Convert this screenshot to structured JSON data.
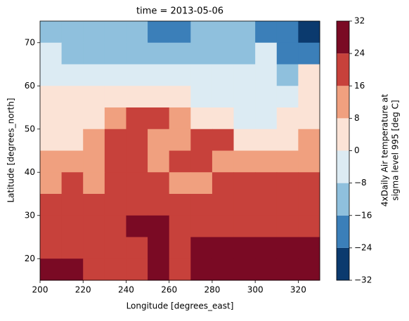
{
  "chart_data": {
    "type": "contourf",
    "title": "time = 2013-05-06",
    "x_label": "Longitude [degrees_east]",
    "y_label": "Latitude [degrees_north]",
    "colorbar_label": [
      "4xDaily Air temperature at",
      "sigma level 995 [deg C]"
    ],
    "x": [
      205,
      215,
      225,
      235,
      245,
      255,
      265,
      275,
      285,
      295,
      305,
      315,
      325
    ],
    "y": [
      72.5,
      67.5,
      62.5,
      57.5,
      52.5,
      47.5,
      42.5,
      37.5,
      32.5,
      27.5,
      22.5,
      17.5
    ],
    "values": [
      [
        -10,
        -10,
        -10,
        -10,
        -10,
        -20,
        -20,
        -10,
        -10,
        -10,
        -20,
        -20,
        -28
      ],
      [
        -4,
        -10,
        -10,
        -10,
        -10,
        -10,
        -10,
        -10,
        -10,
        -10,
        -4,
        -20,
        -20
      ],
      [
        -4,
        -4,
        -4,
        -4,
        -4,
        -4,
        -4,
        -4,
        -4,
        -4,
        -4,
        -10,
        4
      ],
      [
        4,
        4,
        4,
        4,
        4,
        4,
        4,
        -4,
        -4,
        -4,
        -4,
        -4,
        4
      ],
      [
        4,
        4,
        4,
        12,
        20,
        20,
        12,
        4,
        4,
        -4,
        -4,
        4,
        4
      ],
      [
        4,
        4,
        12,
        20,
        20,
        12,
        12,
        20,
        20,
        4,
        4,
        4,
        12
      ],
      [
        12,
        12,
        12,
        20,
        20,
        12,
        20,
        20,
        12,
        12,
        12,
        12,
        12
      ],
      [
        12,
        20,
        12,
        20,
        20,
        20,
        12,
        12,
        20,
        20,
        20,
        20,
        20
      ],
      [
        20,
        20,
        20,
        20,
        20,
        20,
        20,
        20,
        20,
        20,
        20,
        20,
        20
      ],
      [
        20,
        20,
        20,
        20,
        28,
        28,
        20,
        20,
        20,
        20,
        20,
        20,
        20
      ],
      [
        20,
        20,
        20,
        20,
        20,
        28,
        20,
        28,
        28,
        28,
        28,
        28,
        28
      ],
      [
        28,
        28,
        20,
        20,
        20,
        28,
        20,
        28,
        28,
        28,
        28,
        28,
        28
      ]
    ],
    "levels": [
      {
        "value": -32,
        "label": "−32"
      },
      {
        "value": -24,
        "label": "−24"
      },
      {
        "value": -16,
        "label": "−16"
      },
      {
        "value": -8,
        "label": "−8"
      },
      0,
      8,
      16,
      24,
      32
    ],
    "colors": [
      "#0b3a6e",
      "#3b7fb9",
      "#8fc0dd",
      "#dcebf3",
      "#fbe3d6",
      "#f0a07f",
      "#c7413b",
      "#7a0a24"
    ],
    "xlim": [
      200,
      330
    ],
    "xticks": [
      200,
      220,
      240,
      260,
      280,
      300,
      320
    ],
    "ylim": [
      15,
      75
    ],
    "yticks": [
      20,
      30,
      40,
      50,
      60,
      70
    ]
  }
}
